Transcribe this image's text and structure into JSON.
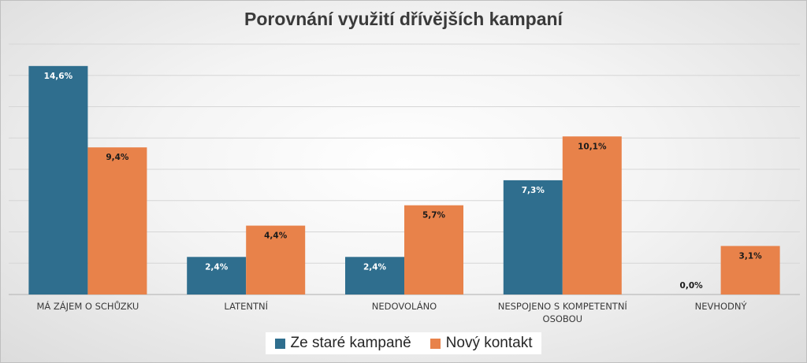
{
  "colors": {
    "series1": "#2f6e8e",
    "series2": "#e8824a"
  },
  "chart_data": {
    "type": "bar",
    "title": "Porovnání využití dřívějších kampaní",
    "categories": [
      [
        "MÁ ZÁJEM O SCHŮZKU"
      ],
      [
        "LATENTNÍ"
      ],
      [
        "NEDOVOLÁNO"
      ],
      [
        "NESPOJENO S KOMPETENTNÍ",
        "OSOBOU"
      ],
      [
        "NEVHODNÝ"
      ]
    ],
    "series": [
      {
        "name": "Ze staré kampaně",
        "values": [
          14.6,
          2.4,
          2.4,
          7.3,
          0.0
        ],
        "labels": [
          "14,6%",
          "2,4%",
          "2,4%",
          "7,3%",
          "0,0%"
        ]
      },
      {
        "name": "Nový kontakt",
        "values": [
          9.4,
          4.4,
          5.7,
          10.1,
          3.1
        ],
        "labels": [
          "9,4%",
          "4,4%",
          "5,7%",
          "10,1%",
          "3,1%"
        ]
      }
    ],
    "ylim": [
      0,
      16
    ],
    "grid": true,
    "legend": "bottom",
    "xlabel": "",
    "ylabel": ""
  }
}
